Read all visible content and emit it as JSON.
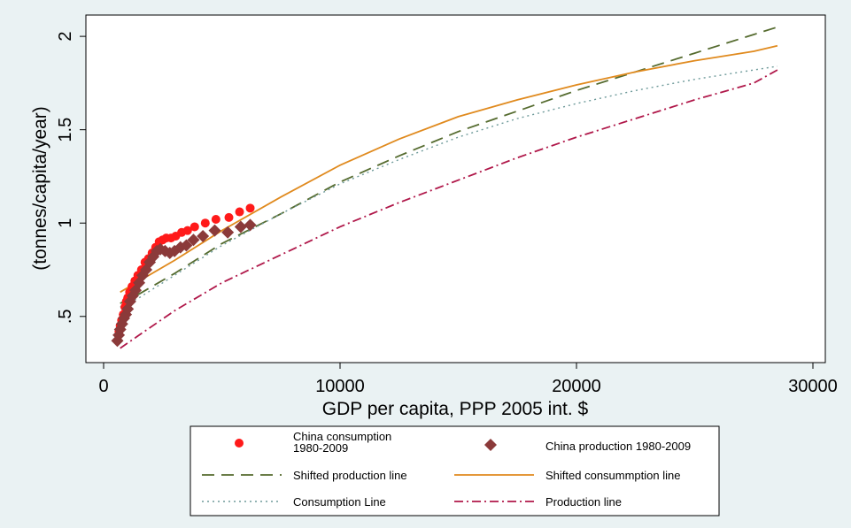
{
  "chart_data": {
    "type": "scatter",
    "xlabel": "GDP per capita, PPP 2005 int. $",
    "ylabel": "(tonnes/capita/year)",
    "xlim": [
      0,
      30000
    ],
    "ylim": [
      0.3,
      2.1
    ],
    "x_ticks": [
      0,
      10000,
      20000,
      30000
    ],
    "y_ticks": [
      0.5,
      1,
      1.5,
      2
    ],
    "x_tick_labels": [
      "0",
      "10000",
      "20000",
      "30000"
    ],
    "y_tick_labels": [
      ".5",
      "1",
      "1.5",
      "2"
    ],
    "grid": false,
    "legend_position": "bottom",
    "series": [
      {
        "name": "China consumption 1980-2009",
        "label_lines": [
          "China consumption",
          "1980-2009"
        ],
        "kind": "points",
        "marker": "circle",
        "color": "#ff1a1a",
        "points": [
          [
            650,
            0.42
          ],
          [
            700,
            0.45
          ],
          [
            760,
            0.48
          ],
          [
            830,
            0.51
          ],
          [
            900,
            0.55
          ],
          [
            960,
            0.58
          ],
          [
            1020,
            0.6
          ],
          [
            1100,
            0.63
          ],
          [
            1200,
            0.66
          ],
          [
            1320,
            0.69
          ],
          [
            1450,
            0.72
          ],
          [
            1600,
            0.75
          ],
          [
            1750,
            0.79
          ],
          [
            1900,
            0.81
          ],
          [
            2050,
            0.84
          ],
          [
            2200,
            0.87
          ],
          [
            2350,
            0.9
          ],
          [
            2500,
            0.91
          ],
          [
            2650,
            0.92
          ],
          [
            2850,
            0.92
          ],
          [
            3050,
            0.93
          ],
          [
            3300,
            0.95
          ],
          [
            3550,
            0.96
          ],
          [
            3850,
            0.98
          ],
          [
            4300,
            1.0
          ],
          [
            4750,
            1.02
          ],
          [
            5300,
            1.03
          ],
          [
            5750,
            1.06
          ],
          [
            6200,
            1.08
          ]
        ]
      },
      {
        "name": "China production 1980-2009",
        "label_lines": [
          "China production 1980-2009"
        ],
        "kind": "points",
        "marker": "diamond",
        "color": "#8b3a3a",
        "points": [
          [
            580,
            0.37
          ],
          [
            640,
            0.4
          ],
          [
            700,
            0.43
          ],
          [
            780,
            0.46
          ],
          [
            860,
            0.49
          ],
          [
            940,
            0.51
          ],
          [
            1020,
            0.54
          ],
          [
            1120,
            0.58
          ],
          [
            1230,
            0.61
          ],
          [
            1350,
            0.64
          ],
          [
            1500,
            0.68
          ],
          [
            1650,
            0.72
          ],
          [
            1800,
            0.75
          ],
          [
            1950,
            0.79
          ],
          [
            2100,
            0.82
          ],
          [
            2250,
            0.85
          ],
          [
            2400,
            0.86
          ],
          [
            2600,
            0.85
          ],
          [
            2800,
            0.84
          ],
          [
            3000,
            0.85
          ],
          [
            3250,
            0.87
          ],
          [
            3500,
            0.88
          ],
          [
            3800,
            0.91
          ],
          [
            4200,
            0.93
          ],
          [
            4700,
            0.96
          ],
          [
            5250,
            0.95
          ],
          [
            5800,
            0.98
          ],
          [
            6200,
            0.99
          ]
        ]
      },
      {
        "name": "Shifted production line",
        "label_lines": [
          "Shifted production line"
        ],
        "kind": "line",
        "dash": "14,8",
        "color": "#556b2f",
        "points": [
          [
            700,
            0.57
          ],
          [
            1500,
            0.62
          ],
          [
            3000,
            0.73
          ],
          [
            5000,
            0.89
          ],
          [
            7500,
            1.05
          ],
          [
            10000,
            1.22
          ],
          [
            12500,
            1.36
          ],
          [
            15000,
            1.49
          ],
          [
            17500,
            1.6
          ],
          [
            20000,
            1.71
          ],
          [
            22500,
            1.81
          ],
          [
            25000,
            1.91
          ],
          [
            27500,
            2.01
          ],
          [
            28500,
            2.05
          ]
        ]
      },
      {
        "name": "Shifted consummption line",
        "label_lines": [
          "Shifted consummption line"
        ],
        "kind": "line",
        "dash": "",
        "color": "#e08a1e",
        "points": [
          [
            700,
            0.63
          ],
          [
            1500,
            0.69
          ],
          [
            3000,
            0.8
          ],
          [
            5000,
            0.96
          ],
          [
            7500,
            1.14
          ],
          [
            10000,
            1.31
          ],
          [
            12500,
            1.45
          ],
          [
            15000,
            1.57
          ],
          [
            17500,
            1.66
          ],
          [
            20000,
            1.74
          ],
          [
            22500,
            1.81
          ],
          [
            25000,
            1.87
          ],
          [
            27500,
            1.92
          ],
          [
            28500,
            1.95
          ]
        ]
      },
      {
        "name": "Consumption Line",
        "label_lines": [
          "Consumption Line"
        ],
        "kind": "line",
        "dash": "2,4",
        "color": "#6e9a9a",
        "points": [
          [
            700,
            0.55
          ],
          [
            1500,
            0.6
          ],
          [
            3000,
            0.72
          ],
          [
            5000,
            0.88
          ],
          [
            7500,
            1.05
          ],
          [
            10000,
            1.21
          ],
          [
            12500,
            1.34
          ],
          [
            15000,
            1.46
          ],
          [
            17500,
            1.56
          ],
          [
            20000,
            1.64
          ],
          [
            22500,
            1.71
          ],
          [
            25000,
            1.77
          ],
          [
            27500,
            1.82
          ],
          [
            28500,
            1.84
          ]
        ]
      },
      {
        "name": "Production line",
        "label_lines": [
          "Production line"
        ],
        "kind": "line",
        "dash": "10,4,2,4",
        "color": "#b0184a",
        "points": [
          [
            700,
            0.33
          ],
          [
            1500,
            0.4
          ],
          [
            3000,
            0.53
          ],
          [
            5000,
            0.68
          ],
          [
            7500,
            0.83
          ],
          [
            10000,
            0.98
          ],
          [
            12500,
            1.11
          ],
          [
            15000,
            1.23
          ],
          [
            17500,
            1.35
          ],
          [
            20000,
            1.46
          ],
          [
            22500,
            1.56
          ],
          [
            25000,
            1.66
          ],
          [
            27500,
            1.75
          ],
          [
            28500,
            1.82
          ]
        ]
      }
    ]
  }
}
